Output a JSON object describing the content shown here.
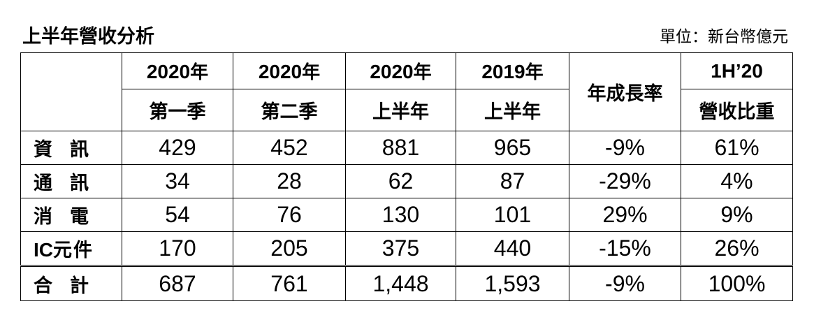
{
  "title": "上半年營收分析",
  "unit": "單位：新台幣億元",
  "header": {
    "columns": [
      {
        "year": "2020",
        "suffix": "年",
        "period": "第一季"
      },
      {
        "year": "2020",
        "suffix": "年",
        "period": "第二季"
      },
      {
        "year": "2020",
        "suffix": "年",
        "period": "上半年"
      },
      {
        "year": "2019",
        "suffix": "年",
        "period": "上半年"
      }
    ],
    "growth": "年成長率",
    "share_top": "1H’20",
    "share_bottom": "營收比重"
  },
  "rows": [
    {
      "label": "資訊",
      "q1": "429",
      "q2": "452",
      "h1_2020": "881",
      "h1_2019": "965",
      "growth": "-9%",
      "share": "61%"
    },
    {
      "label": "通訊",
      "q1": "34",
      "q2": "28",
      "h1_2020": "62",
      "h1_2019": "87",
      "growth": "-29%",
      "share": "4%"
    },
    {
      "label": "消電",
      "q1": "54",
      "q2": "76",
      "h1_2020": "130",
      "h1_2019": "101",
      "growth": "29%",
      "share": "9%"
    },
    {
      "label_latin": "IC",
      "label_cjk": "元件",
      "q1": "170",
      "q2": "205",
      "h1_2020": "375",
      "h1_2019": "440",
      "growth": "-15%",
      "share": "26%"
    }
  ],
  "total": {
    "label": "合計",
    "q1": "687",
    "q2": "761",
    "h1_2020": "1,448",
    "h1_2019": "1,593",
    "growth": "-9%",
    "share": "100%"
  }
}
